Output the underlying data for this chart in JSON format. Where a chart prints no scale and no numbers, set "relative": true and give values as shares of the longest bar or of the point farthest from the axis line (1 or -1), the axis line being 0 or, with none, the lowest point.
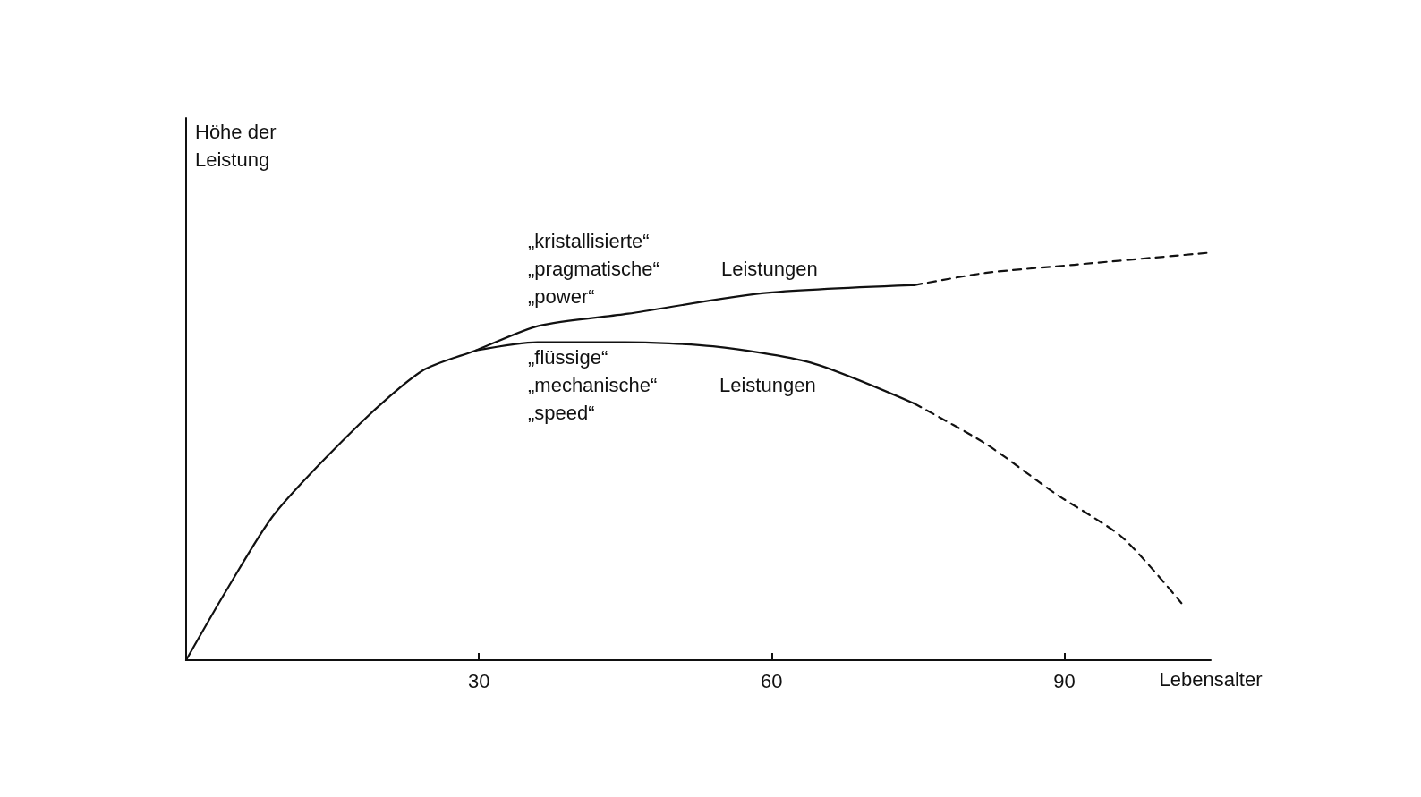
{
  "chart_data": {
    "type": "line",
    "relative": true,
    "xlabel": "Lebensalter",
    "ylabel": "Höhe der\nLeistung",
    "xlim": [
      0,
      105
    ],
    "xticks": [
      30,
      60,
      90
    ],
    "grid": false,
    "marker": "none",
    "series": [
      {
        "color": "#111111",
        "line_style": "solid",
        "x": [
          0,
          4.1,
          9.1,
          17.8,
          24.2,
          29.7,
          36.1,
          45.3,
          59,
          74.6
        ],
        "values": [
          0,
          0.17,
          0.36,
          0.58,
          0.71,
          0.76,
          0.82,
          0.85,
          0.9,
          0.92
        ]
      },
      {
        "color": "#111111",
        "line_style": "dashed",
        "x": [
          74.6,
          81.9,
          91,
          105
        ],
        "values": [
          0.92,
          0.95,
          0.97,
          1
        ]
      },
      {
        "color": "#111111",
        "line_style": "solid",
        "x": [
          29.7,
          36,
          45,
          54,
          64,
          74.6
        ],
        "values": [
          0.76,
          0.78,
          0.78,
          0.77,
          0.73,
          0.63
        ]
      },
      {
        "color": "#111111",
        "line_style": "dashed",
        "x": [
          74.6,
          82,
          89,
          96,
          102
        ],
        "values": [
          0.63,
          0.53,
          0.41,
          0.3,
          0.14
        ]
      }
    ],
    "annotations": [
      "„kristallisierte“\n„pragmatische“\n„power“",
      "Leistungen",
      "„flüssige“\n„mechanische“\n„speed“",
      "Leistungen"
    ]
  }
}
